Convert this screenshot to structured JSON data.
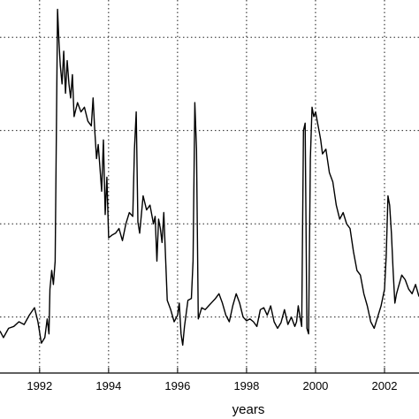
{
  "chart_data": {
    "type": "line",
    "title": "",
    "xlabel": "years",
    "ylabel": "",
    "xlim": [
      1990.8,
      2003.0
    ],
    "ylim": [
      0.0,
      4.0
    ],
    "grid": true,
    "x_ticks": [
      1992,
      1994,
      1996,
      1998,
      2000,
      2002
    ],
    "x_tick_labels": [
      "1992",
      "1994",
      "1996",
      "1998",
      "2000",
      "2002"
    ],
    "y_grid_values": [
      0.6,
      1.6,
      2.6,
      3.6
    ],
    "line_color": "#000000",
    "series": [
      {
        "x": [
          1990.8,
          1990.95,
          1991.1,
          1991.25,
          1991.4,
          1991.55,
          1991.7,
          1991.85,
          1991.95,
          1992.05,
          1992.15,
          1992.22,
          1992.27,
          1992.3,
          1992.35,
          1992.4,
          1992.45,
          1992.5,
          1992.52,
          1992.56,
          1992.6,
          1992.65,
          1992.7,
          1992.75,
          1992.8,
          1992.85,
          1992.9,
          1992.95,
          1993.0,
          1993.1,
          1993.2,
          1993.3,
          1993.4,
          1993.5,
          1993.55,
          1993.6,
          1993.65,
          1993.7,
          1993.75,
          1993.8,
          1993.85,
          1993.9,
          1993.95,
          1994.0,
          1994.1,
          1994.2,
          1994.3,
          1994.4,
          1994.5,
          1994.6,
          1994.7,
          1994.75,
          1994.8,
          1994.85,
          1994.9,
          1995.0,
          1995.1,
          1995.2,
          1995.3,
          1995.35,
          1995.4,
          1995.45,
          1995.5,
          1995.55,
          1995.6,
          1995.7,
          1995.8,
          1995.9,
          1996.0,
          1996.05,
          1996.1,
          1996.15,
          1996.2,
          1996.3,
          1996.4,
          1996.45,
          1996.5,
          1996.55,
          1996.6,
          1996.7,
          1996.8,
          1996.9,
          1997.0,
          1997.1,
          1997.2,
          1997.3,
          1997.4,
          1997.5,
          1997.6,
          1997.7,
          1997.8,
          1997.9,
          1998.0,
          1998.1,
          1998.2,
          1998.3,
          1998.4,
          1998.5,
          1998.6,
          1998.7,
          1998.8,
          1998.9,
          1999.0,
          1999.1,
          1999.2,
          1999.3,
          1999.4,
          1999.45,
          1999.5,
          1999.55,
          1999.6,
          1999.65,
          1999.7,
          1999.75,
          1999.8,
          1999.85,
          1999.9,
          1999.95,
          2000.0,
          2000.05,
          2000.1,
          2000.15,
          2000.2,
          2000.3,
          2000.4,
          2000.5,
          2000.6,
          2000.7,
          2000.8,
          2000.9,
          2001.0,
          2001.1,
          2001.2,
          2001.3,
          2001.4,
          2001.5,
          2001.6,
          2001.7,
          2001.8,
          2001.9,
          2002.0,
          2002.05,
          2002.1,
          2002.15,
          2002.2,
          2002.25,
          2002.3,
          2002.35,
          2002.4,
          2002.5,
          2002.6,
          2002.7,
          2002.8,
          2002.9,
          2003.0
        ],
        "y": [
          0.45,
          0.38,
          0.48,
          0.5,
          0.55,
          0.52,
          0.62,
          0.7,
          0.55,
          0.32,
          0.38,
          0.58,
          0.42,
          0.9,
          1.1,
          0.95,
          1.2,
          3.1,
          3.9,
          3.55,
          3.3,
          3.1,
          3.45,
          3.0,
          3.35,
          3.1,
          2.95,
          3.2,
          2.75,
          2.9,
          2.8,
          2.85,
          2.7,
          2.65,
          2.95,
          2.6,
          2.3,
          2.45,
          2.2,
          1.95,
          2.5,
          1.7,
          2.1,
          1.45,
          1.48,
          1.5,
          1.55,
          1.42,
          1.6,
          1.72,
          1.68,
          2.4,
          2.8,
          1.62,
          1.5,
          1.9,
          1.75,
          1.8,
          1.6,
          1.68,
          1.2,
          1.65,
          1.55,
          1.4,
          1.72,
          0.78,
          0.68,
          0.55,
          0.62,
          0.75,
          0.42,
          0.3,
          0.5,
          0.78,
          0.8,
          1.2,
          2.9,
          2.4,
          0.58,
          0.7,
          0.68,
          0.72,
          0.76,
          0.8,
          0.85,
          0.75,
          0.62,
          0.55,
          0.72,
          0.85,
          0.75,
          0.6,
          0.56,
          0.58,
          0.55,
          0.5,
          0.68,
          0.7,
          0.62,
          0.72,
          0.55,
          0.48,
          0.54,
          0.68,
          0.52,
          0.6,
          0.5,
          0.55,
          0.72,
          0.6,
          0.5,
          2.6,
          2.68,
          0.48,
          0.42,
          2.3,
          2.85,
          2.75,
          2.8,
          2.7,
          2.6,
          2.5,
          2.35,
          2.4,
          2.15,
          2.05,
          1.8,
          1.65,
          1.72,
          1.6,
          1.55,
          1.3,
          1.1,
          1.05,
          0.85,
          0.72,
          0.55,
          0.48,
          0.6,
          0.72,
          0.9,
          1.25,
          1.9,
          1.8,
          1.5,
          1.1,
          0.75,
          0.85,
          0.92,
          1.05,
          1.0,
          0.9,
          0.85,
          0.95,
          0.82
        ]
      }
    ]
  }
}
